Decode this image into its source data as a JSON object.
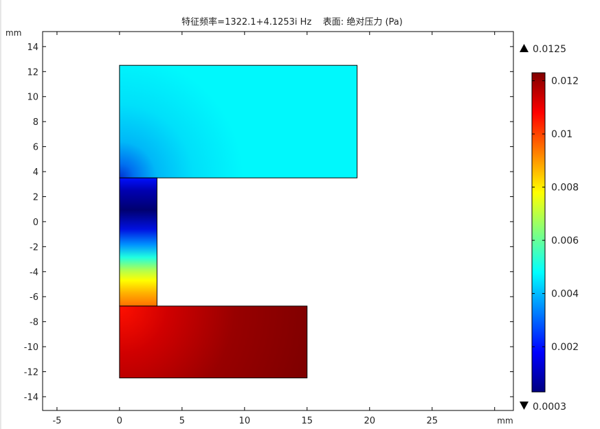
{
  "chart_data": {
    "type": "heatmap",
    "title": "特征频率=1322.1+4.1253i Hz    表面: 绝对压力 (Pa)",
    "xlabel": "mm",
    "ylabel": "mm",
    "xlim": [
      -6.15,
      31.5
    ],
    "ylim": [
      -15.1,
      15.2
    ],
    "xticks": [
      -5,
      0,
      5,
      10,
      15,
      20,
      25,
      30
    ],
    "xtick_labels": [
      "-5",
      "0",
      "5",
      "10",
      "15",
      "20",
      "25",
      ""
    ],
    "yticks": [
      -14,
      -12,
      -10,
      -8,
      -6,
      -4,
      -2,
      0,
      2,
      4,
      6,
      8,
      10,
      12,
      14
    ],
    "ytick_labels": [
      "-14",
      "-12",
      "-10",
      "-8",
      "-6",
      "-4",
      "-2",
      "0",
      "2",
      "4",
      "6",
      "8",
      "10",
      "12",
      "14"
    ],
    "grid": false,
    "colormap": "rainbow",
    "colorbar": {
      "min": 0.0003,
      "max": 0.0125,
      "max_label": "0.0125",
      "min_label": "0.0003",
      "range": [
        0.0003,
        0.0123
      ],
      "ticks": [
        0.002,
        0.004,
        0.006,
        0.008,
        0.01,
        0.012
      ],
      "tick_labels": [
        "0.002",
        "0.004",
        "0.006",
        "0.008",
        "0.01",
        "0.012"
      ],
      "placement": "right"
    },
    "domains": [
      {
        "x": [
          0,
          19
        ],
        "y": [
          3.5,
          12.5
        ],
        "value_range": [
          0.002,
          0.0046
        ]
      },
      {
        "x": [
          0,
          3
        ],
        "y": [
          -6.75,
          3.5
        ],
        "value_range": [
          0.0005,
          0.0105
        ]
      },
      {
        "x": [
          0,
          15
        ],
        "y": [
          -12.5,
          -6.75
        ],
        "value_range": [
          0.0115,
          0.0123
        ]
      }
    ]
  }
}
